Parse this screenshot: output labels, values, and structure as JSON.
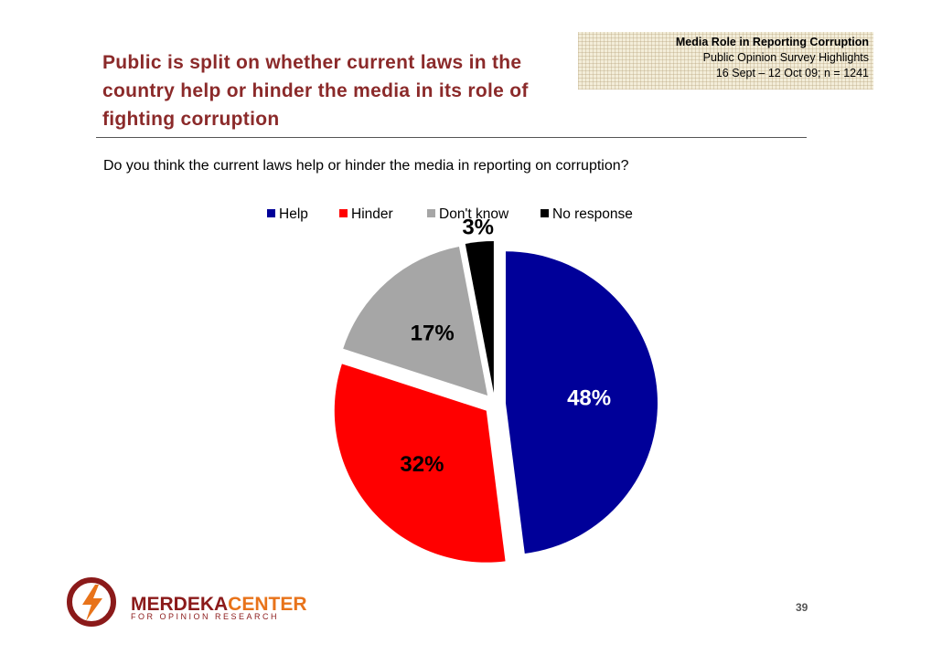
{
  "header": {
    "lines": [
      "Media Role in Reporting Corruption",
      "Public Opinion Survey Highlights",
      "16 Sept – 12 Oct 09; n = 1241"
    ]
  },
  "title": "Public is split on whether current laws in the country help or hinder the media in its role of fighting corruption",
  "question": "Do you think the current laws help or hinder the media in reporting on corruption?",
  "chart_data": {
    "type": "pie",
    "categories": [
      "Help",
      "Hinder",
      "Don't know",
      "No response"
    ],
    "values": [
      48,
      32,
      17,
      3
    ],
    "value_labels": [
      "48%",
      "32%",
      "17%",
      "3%"
    ],
    "colors": [
      "#000099",
      "#ff0000",
      "#a6a6a6",
      "#000000"
    ],
    "exploded": true
  },
  "logo": {
    "name_first": "MERDEKA",
    "name_second": "CENTER",
    "tagline": "FOR OPINION RESEARCH"
  },
  "page_number": "39"
}
